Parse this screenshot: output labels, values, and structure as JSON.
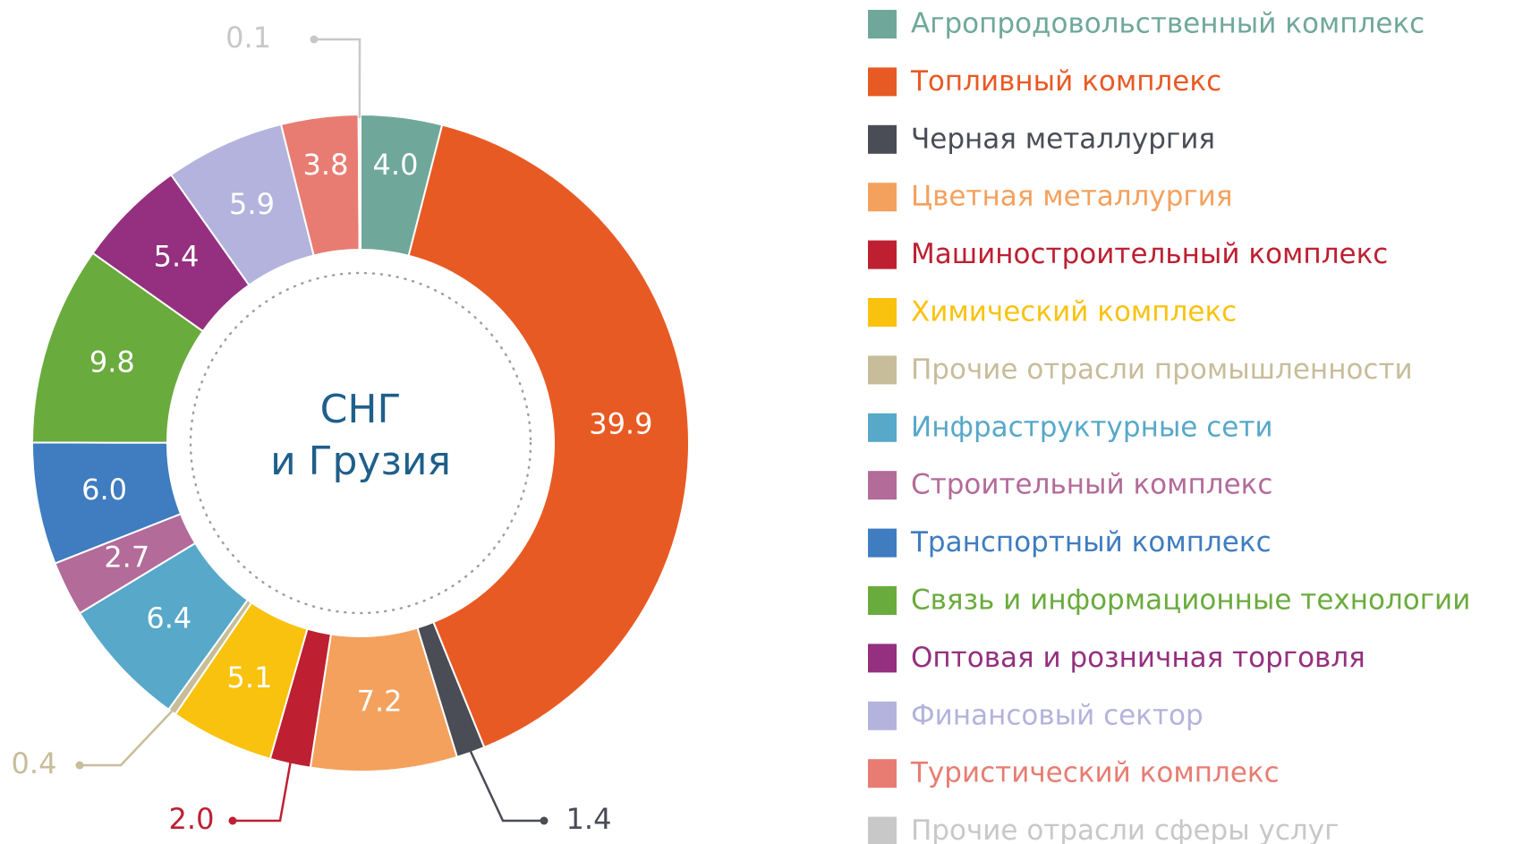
{
  "chart_data": {
    "type": "donut",
    "center_label": [
      "СНГ",
      "и Грузия"
    ],
    "categories": [
      "Агропродовольственный комплекс",
      "Топливный комплекс",
      "Черная металлургия",
      "Цветная металлургия",
      "Машиностроительный комплекс",
      "Химический комплекс",
      "Прочие отрасли промышленности",
      "Инфраструктурные сети",
      "Строительный комплекс",
      "Транспортный комплекс",
      "Связь и информационные технологии",
      "Оптовая и розничная торговля",
      "Финансовый сектор",
      "Туристический комплекс",
      "Прочие отрасли сферы услуг"
    ],
    "values": [
      4.0,
      39.9,
      1.4,
      7.2,
      2.0,
      5.1,
      0.4,
      6.4,
      2.7,
      6.0,
      9.8,
      5.4,
      5.9,
      3.8,
      0.1
    ],
    "value_labels": [
      "4.0",
      "39.9",
      "1.4",
      "7.2",
      "2.0",
      "5.1",
      "0.4",
      "6.4",
      "2.7",
      "6.0",
      "9.8",
      "5.4",
      "5.9",
      "3.8",
      "0.1"
    ],
    "colors": [
      "#6fa89a",
      "#e85a24",
      "#4a4c56",
      "#f4a15d",
      "#be2032",
      "#f9c20f",
      "#c8bd9a",
      "#57a8c9",
      "#b36b99",
      "#3f7cc0",
      "#6aab3d",
      "#94307f",
      "#b3b3dd",
      "#e87c72",
      "#c8c8c8"
    ],
    "legend": "right"
  }
}
